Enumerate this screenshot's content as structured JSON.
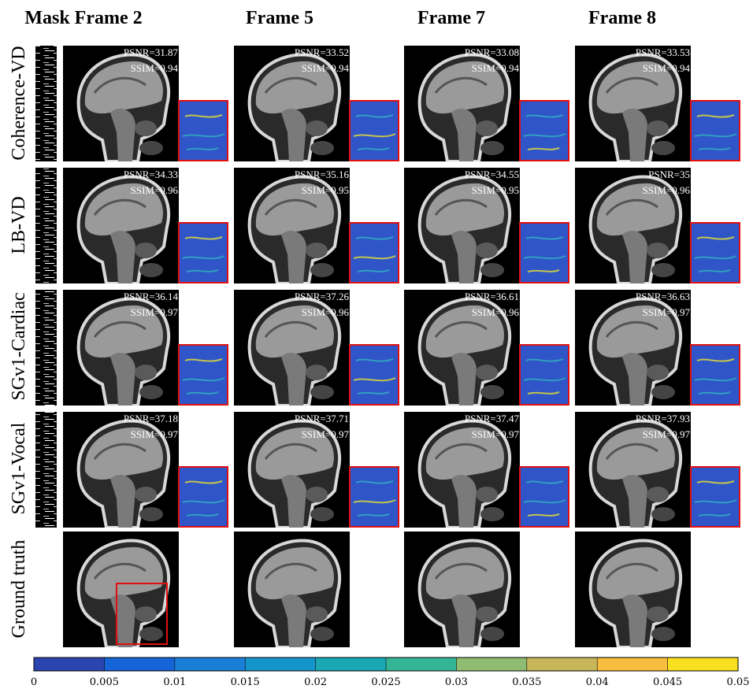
{
  "header": {
    "columns": [
      "Mask Frame 2",
      "Frame 5",
      "Frame 7",
      "Frame 8"
    ]
  },
  "rows": [
    {
      "label": "Coherence-VD",
      "cells": [
        {
          "psnr": "PSNR=31.87",
          "ssim": "SSIM=0.94"
        },
        {
          "psnr": "PSNR=33.52",
          "ssim": "SSIM=0.94"
        },
        {
          "psnr": "PSNR=33.08",
          "ssim": "SSIM=0.94"
        },
        {
          "psnr": "PSNR=33.53",
          "ssim": "SSIM=0.94"
        }
      ]
    },
    {
      "label": "LB-VD",
      "cells": [
        {
          "psnr": "PSNR=34.33",
          "ssim": "SSIM=0.96"
        },
        {
          "psnr": "PSNR=35.16",
          "ssim": "SSIM=0.95"
        },
        {
          "psnr": "PSNR=34.55",
          "ssim": "SSIM=0.95"
        },
        {
          "psnr": "PSNR=35",
          "ssim": "SSIM=0.96"
        }
      ]
    },
    {
      "label": "SGv1-Cardiac",
      "cells": [
        {
          "psnr": "PSNR=36.14",
          "ssim": "SSIM=0.97"
        },
        {
          "psnr": "PSNR=37.26",
          "ssim": "SSIM=0.96"
        },
        {
          "psnr": "PSNR=36.61",
          "ssim": "SSIM=0.96"
        },
        {
          "psnr": "PSNR=36.63",
          "ssim": "SSIM=0.97"
        }
      ]
    },
    {
      "label": "SGv1-Vocal",
      "cells": [
        {
          "psnr": "PSNR=37.18",
          "ssim": "SSIM=0.97"
        },
        {
          "psnr": "PSNR=37.71",
          "ssim": "SSIM=0.97"
        },
        {
          "psnr": "PSNR=37.47",
          "ssim": "SSIM=0.97"
        },
        {
          "psnr": "PSNR=37.93",
          "ssim": "SSIM=0.97"
        }
      ]
    },
    {
      "label": "Ground truth"
    }
  ],
  "colorbar": {
    "ticks": [
      0,
      0.005,
      0.01,
      0.015,
      0.02,
      0.025,
      0.03,
      0.035,
      0.04,
      0.045,
      0.05
    ],
    "colors": [
      "#2a44b0",
      "#1565d8",
      "#1a7ed6",
      "#1496cc",
      "#1aa9b3",
      "#34b596",
      "#8fbc70",
      "#c8b65a",
      "#f7bd3e",
      "#f9e01f"
    ]
  }
}
